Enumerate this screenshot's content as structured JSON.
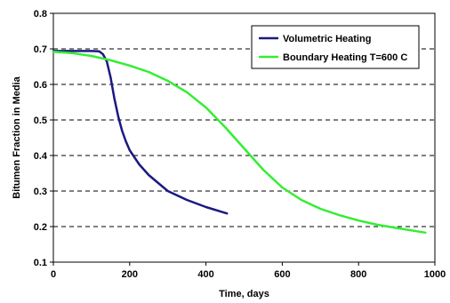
{
  "chart_data": {
    "type": "line",
    "xlabel": "Time, days",
    "ylabel": "Bitumen Fraction in Media",
    "xlim": [
      0,
      1000
    ],
    "ylim": [
      0.1,
      0.8
    ],
    "x_ticks": [
      "0",
      "200",
      "400",
      "600",
      "800",
      "1000"
    ],
    "y_ticks": [
      "0.1",
      "0.2",
      "0.3",
      "0.4",
      "0.5",
      "0.6",
      "0.7",
      "0.8"
    ],
    "grid": "horizontal dashed",
    "legend_position": "top-right",
    "series": [
      {
        "name": "Volumetric Heating",
        "color": "#1a1a80",
        "x": [
          0,
          50,
          100,
          120,
          130,
          140,
          150,
          160,
          170,
          180,
          190,
          200,
          225,
          250,
          300,
          350,
          400,
          455
        ],
        "y": [
          0.694,
          0.694,
          0.694,
          0.693,
          0.685,
          0.665,
          0.62,
          0.56,
          0.51,
          0.47,
          0.44,
          0.415,
          0.375,
          0.345,
          0.3,
          0.275,
          0.255,
          0.237
        ]
      },
      {
        "name": "Boundary Heating T=600 C",
        "color": "#33ee33",
        "x": [
          0,
          50,
          100,
          150,
          200,
          250,
          300,
          350,
          400,
          450,
          500,
          550,
          600,
          650,
          700,
          750,
          800,
          850,
          900,
          975
        ],
        "y": [
          0.692,
          0.688,
          0.68,
          0.668,
          0.653,
          0.635,
          0.61,
          0.578,
          0.535,
          0.48,
          0.42,
          0.36,
          0.31,
          0.275,
          0.25,
          0.232,
          0.217,
          0.205,
          0.196,
          0.183
        ]
      }
    ]
  }
}
